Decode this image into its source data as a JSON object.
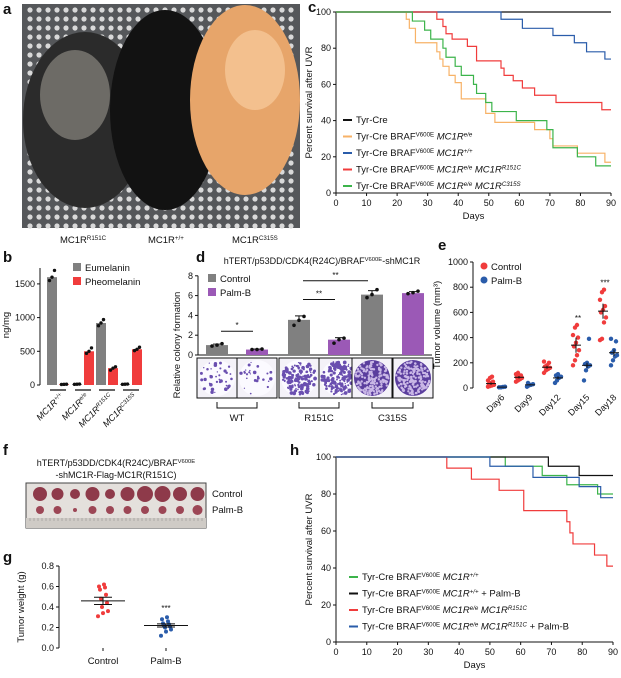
{
  "panel_labels": {
    "a": "a",
    "b": "b",
    "c": "c",
    "d": "d",
    "e": "e",
    "f": "f",
    "g": "g",
    "h": "h"
  },
  "panel_a": {
    "mouse_labels": [
      [
        {
          "t": "MC1R"
        },
        {
          "t": "R151C",
          "s": "sup"
        }
      ],
      [
        {
          "t": "MC1R"
        },
        {
          "t": "+/+",
          "s": "sup"
        }
      ],
      [
        {
          "t": "MC1R"
        },
        {
          "t": "C315S",
          "s": "sup"
        }
      ]
    ]
  },
  "panel_f": {
    "title_line1": [
      {
        "t": "hTERT/p53DD/CDK4(R24C)/BRAF"
      },
      {
        "t": "V600E",
        "s": "sup"
      }
    ],
    "title_line2": "-shMC1R-Flag-MC1R(R151C)",
    "row_labels": [
      "Control",
      "Palm-B"
    ],
    "tumor_counts": {
      "control": 10,
      "palm_b": 10
    }
  },
  "colors": {
    "control_gray": "#808080",
    "palm_purple": "#9b59b6",
    "red": "#f03c3c",
    "blue": "#2a5caa",
    "orange": "#f7b267",
    "green": "#3cb44b",
    "black": "#111111"
  },
  "chart_data": [
    {
      "id": "c",
      "type": "line",
      "subtype": "kaplan-meier",
      "xlabel": "Days",
      "ylabel": "Percent survival after UVR",
      "xlim": [
        0,
        90
      ],
      "ylim": [
        0,
        100
      ],
      "xticks": [
        "0",
        "10",
        "20",
        "30",
        "40",
        "50",
        "60",
        "70",
        "80",
        "90"
      ],
      "yticks": [
        "0",
        "20",
        "40",
        "60",
        "80",
        "100"
      ],
      "legend_position": "bottom-left",
      "series": [
        {
          "name": [
            {
              "t": "Tyr-Cre"
            }
          ],
          "color": "#111111",
          "steps": []
        },
        {
          "name": [
            {
              "t": "Tyr-Cre BRAF"
            },
            {
              "t": "V600E",
              "s": "sup"
            },
            {
              "t": "  MC1R",
              "s": "i"
            },
            {
              "t": "e/e",
              "s": "supi"
            }
          ],
          "color": "#f7b267",
          "steps": [
            [
              23,
              96
            ],
            [
              24,
              91
            ],
            [
              26,
              83
            ],
            [
              33,
              78
            ],
            [
              34,
              74
            ],
            [
              35,
              70
            ],
            [
              37,
              65
            ],
            [
              39,
              61
            ],
            [
              41,
              52
            ],
            [
              49,
              44
            ],
            [
              52,
              39
            ],
            [
              65,
              35
            ],
            [
              70,
              30
            ],
            [
              71,
              26
            ],
            [
              79,
              22
            ],
            [
              88,
              17
            ]
          ]
        },
        {
          "name": [
            {
              "t": "Tyr-Cre BRAF"
            },
            {
              "t": "V600E",
              "s": "sup"
            },
            {
              "t": "  MC1R",
              "s": "i"
            },
            {
              "t": "+/+",
              "s": "supi"
            }
          ],
          "color": "#2a5caa",
          "steps": [
            [
              54,
              96
            ],
            [
              61,
              91
            ],
            [
              71,
              87
            ],
            [
              78,
              83
            ],
            [
              82,
              78
            ],
            [
              88,
              74
            ]
          ]
        },
        {
          "name": [
            {
              "t": "Tyr-Cre BRAF"
            },
            {
              "t": "V600E",
              "s": "sup"
            },
            {
              "t": "  MC1R",
              "s": "i"
            },
            {
              "t": "e/e",
              "s": "supi"
            },
            {
              "t": "  MC1R",
              "s": "i"
            },
            {
              "t": "R151C",
              "s": "supi"
            }
          ],
          "color": "#f03c3c",
          "steps": [
            [
              33,
              96
            ],
            [
              35,
              92
            ],
            [
              36,
              88
            ],
            [
              38,
              85
            ],
            [
              43,
              81
            ],
            [
              46,
              73
            ],
            [
              54,
              69
            ],
            [
              55,
              65
            ],
            [
              58,
              62
            ],
            [
              61,
              58
            ],
            [
              65,
              54
            ],
            [
              72,
              50
            ],
            [
              87,
              46
            ]
          ]
        },
        {
          "name": [
            {
              "t": "Tyr-Cre BRAF"
            },
            {
              "t": "V600E",
              "s": "sup"
            },
            {
              "t": "  MC1R",
              "s": "i"
            },
            {
              "t": "e/e",
              "s": "supi"
            },
            {
              "t": "  MC1R",
              "s": "i"
            },
            {
              "t": "C315S",
              "s": "supi"
            }
          ],
          "color": "#3cb44b",
          "steps": [
            [
              25,
              95
            ],
            [
              29,
              90
            ],
            [
              31,
              85
            ],
            [
              35,
              80
            ],
            [
              36,
              75
            ],
            [
              39,
              70
            ],
            [
              41,
              65
            ],
            [
              45,
              60
            ],
            [
              46,
              55
            ],
            [
              49,
              50
            ],
            [
              51,
              45
            ],
            [
              59,
              40
            ],
            [
              69,
              35
            ],
            [
              71,
              25
            ],
            [
              79,
              20
            ],
            [
              85,
              15
            ]
          ]
        }
      ]
    },
    {
      "id": "b",
      "type": "bar",
      "ylabel": "ng/mg",
      "ylim": [
        0,
        1750
      ],
      "yticks": [
        "0",
        "500",
        "1000",
        "1500"
      ],
      "categories": [
        [
          {
            "t": "MC1R",
            "s": "i"
          },
          {
            "t": "+/+",
            "s": "supi"
          }
        ],
        [
          {
            "t": "MC1R",
            "s": "i"
          },
          {
            "t": "e/e",
            "s": "supi"
          }
        ],
        [
          {
            "t": "MC1R",
            "s": "i"
          },
          {
            "t": "R151C",
            "s": "supi"
          }
        ],
        [
          {
            "t": "MC1R",
            "s": "i"
          },
          {
            "t": "C315S",
            "s": "supi"
          }
        ]
      ],
      "legend_position": "top-right",
      "series": [
        {
          "name": "Eumelanin",
          "color": "#808080",
          "values": [
            1600,
            12,
            920,
            12
          ],
          "points": [
            [
              1550,
              1600,
              1700
            ],
            [
              10,
              12,
              14
            ],
            [
              880,
              920,
              970
            ],
            [
              10,
              12,
              14
            ]
          ]
        },
        {
          "name": "Pheomelanin",
          "color": "#f03c3c",
          "values": [
            10,
            500,
            250,
            530
          ],
          "points": [
            [
              8,
              10,
              12
            ],
            [
              470,
              500,
              550
            ],
            [
              220,
              250,
              270
            ],
            [
              510,
              530,
              560
            ]
          ]
        }
      ]
    },
    {
      "id": "d",
      "type": "bar",
      "title": [
        {
          "t": "hTERT/p53DD/CDK4(R24C)/BRAF"
        },
        {
          "t": "V600E",
          "s": "sup"
        },
        {
          "t": "-shMC1R"
        }
      ],
      "ylabel": "Relative colony formation",
      "ylim": [
        0,
        8
      ],
      "yticks": [
        "0",
        "2",
        "4",
        "6",
        "8"
      ],
      "categories": [
        "WT",
        "R151C",
        "C315S"
      ],
      "legend_position": "top-left",
      "series": [
        {
          "name": "Control",
          "color": "#808080",
          "values": [
            1.0,
            3.55,
            6.1
          ],
          "errors": [
            0.1,
            0.4,
            0.4
          ],
          "points": [
            [
              0.9,
              1.0,
              1.15
            ],
            [
              3.0,
              3.5,
              3.9
            ],
            [
              5.8,
              6.1,
              6.6
            ]
          ]
        },
        {
          "name": "Palm-B",
          "color": "#9b59b6",
          "values": [
            0.55,
            1.55,
            6.25
          ],
          "errors": [
            0.05,
            0.2,
            0.15
          ],
          "points": [
            [
              0.55,
              0.55,
              0.6
            ],
            [
              1.2,
              1.55,
              1.7
            ],
            [
              6.2,
              6.3,
              6.45
            ]
          ]
        }
      ],
      "significance": [
        {
          "label": "*",
          "from": [
            0,
            0
          ],
          "to": [
            0,
            1
          ],
          "y": 2.4
        },
        {
          "label": "**",
          "from": [
            1,
            0
          ],
          "to": [
            1,
            1
          ],
          "y": 5.6
        },
        {
          "label": "**",
          "from": [
            1,
            0
          ],
          "to": [
            2,
            0
          ],
          "y": 7.5
        }
      ]
    },
    {
      "id": "e",
      "type": "scatter",
      "ylabel": "Tumor volume (mm³)",
      "ylim": [
        0,
        1000
      ],
      "yticks": [
        "0",
        "200",
        "400",
        "600",
        "800",
        "1000"
      ],
      "categories": [
        "Day6",
        "Day9",
        "Day12",
        "Day15",
        "Day18"
      ],
      "legend_position": "top-left",
      "series": [
        {
          "name": "Control",
          "color": "#f03c3c",
          "points": [
            [
              10,
              15,
              20,
              25,
              30,
              40,
              50,
              60,
              80,
              90
            ],
            [
              50,
              60,
              70,
              80,
              85,
              90,
              100,
              110,
              120
            ],
            [
              120,
              140,
              150,
              160,
              170,
              180,
              200,
              210
            ],
            [
              180,
              220,
              260,
              300,
              330,
              360,
              400,
              420,
              480,
              500
            ],
            [
              380,
              390,
              520,
              560,
              600,
              620,
              650,
              700,
              760,
              780
            ]
          ],
          "means": [
            35,
            85,
            165,
            340,
            610
          ],
          "sem": [
            10,
            10,
            12,
            60,
            60
          ]
        },
        {
          "name": "Palm-B",
          "color": "#2a5caa",
          "points": [
            [
              5,
              5,
              8,
              10
            ],
            [
              10,
              20,
              25,
              30,
              40
            ],
            [
              40,
              60,
              80,
              90,
              100,
              110
            ],
            [
              60,
              140,
              170,
              180,
              190,
              200,
              390
            ],
            [
              180,
              220,
              250,
              260,
              280,
              300,
              370,
              390
            ]
          ],
          "means": [
            7,
            25,
            80,
            180,
            280
          ],
          "sem": [
            2,
            5,
            12,
            20,
            25
          ]
        }
      ],
      "significance": [
        "",
        "",
        "",
        "**",
        "***"
      ]
    },
    {
      "id": "g",
      "type": "scatter",
      "ylabel": "Tumor weight (g)",
      "ylim": [
        0,
        0.8
      ],
      "yticks": [
        "0.0",
        "0.2",
        "0.4",
        "0.6",
        "0.8"
      ],
      "categories": [
        "Control",
        "Palm-B"
      ],
      "series": [
        {
          "name": "Control",
          "color": "#f03c3c",
          "points": [
            0.31,
            0.34,
            0.36,
            0.4,
            0.44,
            0.48,
            0.52,
            0.57,
            0.59,
            0.6,
            0.62
          ],
          "mean": 0.46,
          "sem": 0.035
        },
        {
          "name": "Palm-B",
          "color": "#2a5caa",
          "points": [
            0.12,
            0.16,
            0.18,
            0.2,
            0.21,
            0.22,
            0.23,
            0.24,
            0.26,
            0.28,
            0.3
          ],
          "mean": 0.22,
          "sem": 0.015
        }
      ],
      "significance": [
        "",
        "***"
      ]
    },
    {
      "id": "h",
      "type": "line",
      "subtype": "kaplan-meier",
      "xlabel": "Days",
      "ylabel": "Percent survival after UVR",
      "xlim": [
        0,
        90
      ],
      "ylim": [
        0,
        100
      ],
      "xticks": [
        "0",
        "10",
        "20",
        "30",
        "40",
        "50",
        "60",
        "70",
        "80",
        "90"
      ],
      "yticks": [
        "0",
        "20",
        "40",
        "60",
        "80",
        "100"
      ],
      "legend_position": "bottom-left",
      "series": [
        {
          "name": [
            {
              "t": "Tyr-Cre BRAF"
            },
            {
              "t": "V600E",
              "s": "sup"
            },
            {
              "t": "  MC1R",
              "s": "i"
            },
            {
              "t": "+/+",
              "s": "supi"
            }
          ],
          "color": "#3cb44b",
          "steps": [
            [
              55,
              95
            ],
            [
              67,
              90
            ],
            [
              75,
              85
            ],
            [
              85,
              80
            ]
          ]
        },
        {
          "name": [
            {
              "t": "Tyr-Cre BRAF"
            },
            {
              "t": "V600E",
              "s": "sup"
            },
            {
              "t": "  MC1R",
              "s": "i"
            },
            {
              "t": "+/+",
              "s": "supi"
            },
            {
              "t": " + Palm-B"
            }
          ],
          "color": "#111111",
          "steps": [
            [
              69,
              95
            ],
            [
              79,
              90
            ]
          ]
        },
        {
          "name": [
            {
              "t": "Tyr-Cre BRAF"
            },
            {
              "t": "V600E",
              "s": "sup"
            },
            {
              "t": "  MC1R",
              "s": "i"
            },
            {
              "t": "e/e",
              "s": "supi"
            },
            {
              "t": "  MC1R",
              "s": "i"
            },
            {
              "t": "R151C",
              "s": "supi"
            }
          ],
          "color": "#f03c3c",
          "steps": [
            [
              36,
              94
            ],
            [
              44,
              88
            ],
            [
              53,
              82
            ],
            [
              61,
              71
            ],
            [
              75,
              65
            ],
            [
              76,
              59
            ],
            [
              77,
              53
            ],
            [
              84,
              47
            ],
            [
              88,
              41
            ]
          ]
        },
        {
          "name": [
            {
              "t": "Tyr-Cre BRAF"
            },
            {
              "t": "V600E",
              "s": "sup"
            },
            {
              "t": "  MC1R",
              "s": "i"
            },
            {
              "t": "e/e",
              "s": "supi"
            },
            {
              "t": "  MC1R",
              "s": "i"
            },
            {
              "t": "R151C",
              "s": "supi"
            },
            {
              "t": "  + Palm-B"
            }
          ],
          "color": "#2a5caa",
          "steps": [
            [
              50,
              95
            ],
            [
              64,
              89
            ],
            [
              79,
              84
            ],
            [
              86,
              78
            ]
          ]
        }
      ]
    }
  ]
}
